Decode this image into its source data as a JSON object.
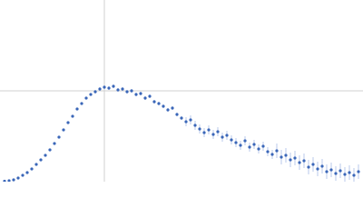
{
  "chart_data": {
    "type": "scatter",
    "xlim": [
      0,
      4
    ],
    "ylim": [
      0,
      2
    ],
    "xticks": [
      1.15
    ],
    "yticks": [
      1
    ],
    "grid": true,
    "series": [
      {
        "color": "#3a66b8",
        "error_color": "#a9bde6",
        "x": [
          0.05,
          0.1,
          0.15,
          0.2,
          0.25,
          0.3,
          0.35,
          0.4,
          0.45,
          0.5,
          0.55,
          0.6,
          0.65,
          0.7,
          0.75,
          0.8,
          0.85,
          0.9,
          0.95,
          1.0,
          1.05,
          1.1,
          1.15,
          1.2,
          1.25,
          1.3,
          1.35,
          1.4,
          1.45,
          1.5,
          1.55,
          1.6,
          1.65,
          1.7,
          1.75,
          1.8,
          1.85,
          1.9,
          1.95,
          2.0,
          2.05,
          2.1,
          2.15,
          2.2,
          2.25,
          2.3,
          2.35,
          2.4,
          2.45,
          2.5,
          2.55,
          2.6,
          2.65,
          2.7,
          2.75,
          2.8,
          2.85,
          2.9,
          2.95,
          3.0,
          3.05,
          3.1,
          3.15,
          3.2,
          3.25,
          3.3,
          3.35,
          3.4,
          3.45,
          3.5,
          3.55,
          3.6,
          3.65,
          3.7,
          3.75,
          3.8,
          3.85,
          3.9,
          3.95
        ],
        "values": [
          0.005,
          0.01,
          0.02,
          0.04,
          0.07,
          0.1,
          0.14,
          0.19,
          0.24,
          0.29,
          0.35,
          0.42,
          0.49,
          0.57,
          0.65,
          0.72,
          0.8,
          0.86,
          0.92,
          0.96,
          0.99,
          1.02,
          1.04,
          1.03,
          1.05,
          1.01,
          1.02,
          0.99,
          1.0,
          0.96,
          0.97,
          0.92,
          0.94,
          0.88,
          0.86,
          0.83,
          0.79,
          0.81,
          0.74,
          0.7,
          0.66,
          0.68,
          0.62,
          0.58,
          0.54,
          0.57,
          0.52,
          0.55,
          0.49,
          0.51,
          0.46,
          0.43,
          0.4,
          0.45,
          0.38,
          0.41,
          0.36,
          0.39,
          0.33,
          0.3,
          0.34,
          0.27,
          0.29,
          0.24,
          0.26,
          0.21,
          0.23,
          0.16,
          0.19,
          0.14,
          0.17,
          0.11,
          0.13,
          0.09,
          0.12,
          0.08,
          0.1,
          0.07,
          0.11
        ],
        "errors": [
          0.005,
          0.005,
          0.005,
          0.005,
          0.005,
          0.005,
          0.005,
          0.005,
          0.005,
          0.005,
          0.005,
          0.005,
          0.005,
          0.005,
          0.005,
          0.005,
          0.005,
          0.005,
          0.005,
          0.005,
          0.02,
          0.02,
          0.02,
          0.02,
          0.02,
          0.02,
          0.02,
          0.02,
          0.02,
          0.02,
          0.02,
          0.02,
          0.02,
          0.02,
          0.02,
          0.02,
          0.02,
          0.02,
          0.02,
          0.02,
          0.05,
          0.05,
          0.05,
          0.05,
          0.05,
          0.05,
          0.05,
          0.05,
          0.05,
          0.05,
          0.05,
          0.05,
          0.05,
          0.05,
          0.05,
          0.05,
          0.05,
          0.05,
          0.05,
          0.05,
          0.08,
          0.08,
          0.08,
          0.08,
          0.08,
          0.08,
          0.08,
          0.08,
          0.08,
          0.08,
          0.08,
          0.08,
          0.08,
          0.08,
          0.08,
          0.08,
          0.08,
          0.08,
          0.08
        ]
      }
    ]
  }
}
